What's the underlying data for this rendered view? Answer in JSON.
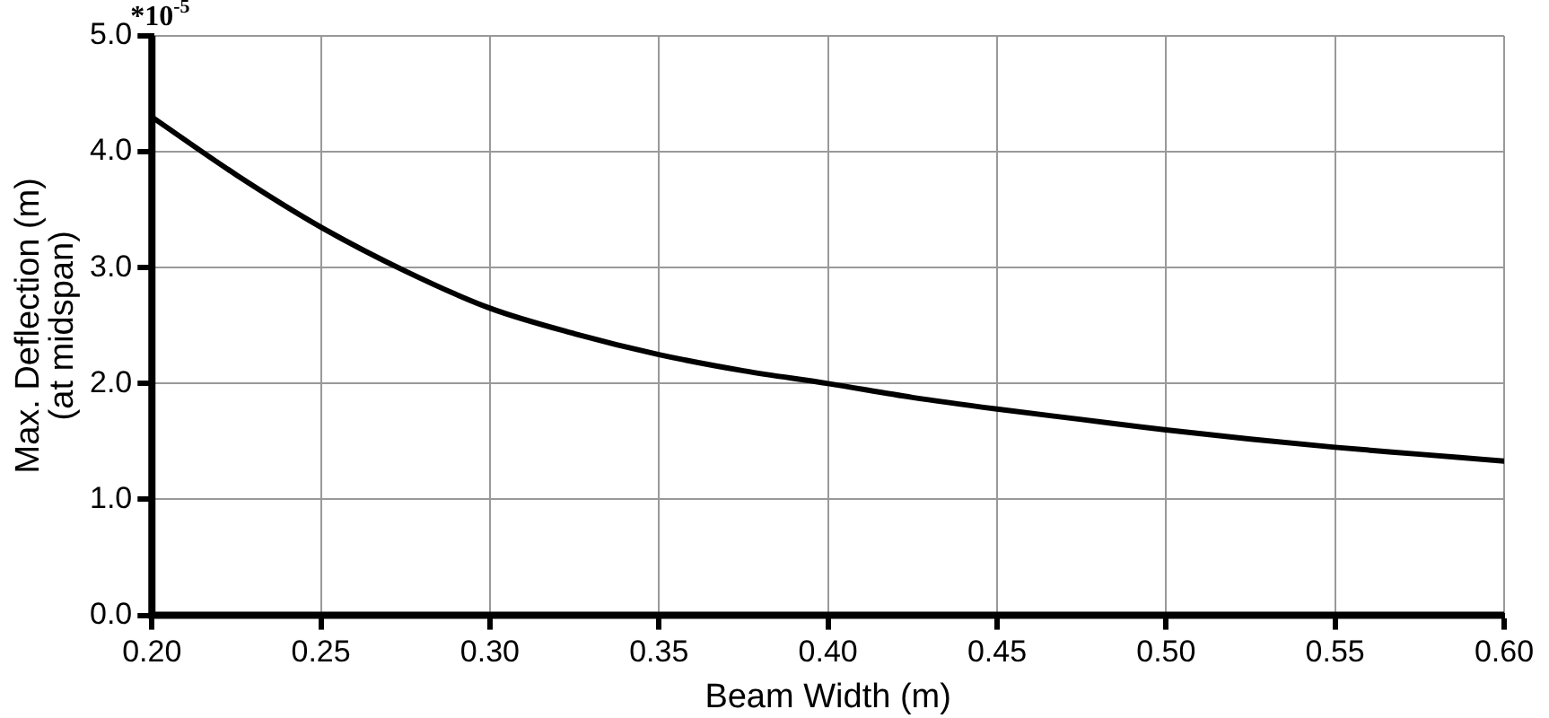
{
  "chart_data": {
    "type": "line",
    "xlabel": "Beam Width (m)",
    "ylabel": "Max. Deflection (m)\n(at midspan)",
    "annotations": [
      "*10$^{-5}$"
    ],
    "x": [
      0.2,
      0.225,
      0.25,
      0.275,
      0.3,
      0.325,
      0.35,
      0.375,
      0.4,
      0.425,
      0.45,
      0.475,
      0.5,
      0.525,
      0.55,
      0.575,
      0.6
    ],
    "series": [
      {
        "color": "#000000",
        "values": [
          4.3,
          3.8,
          3.35,
          2.97,
          2.65,
          2.43,
          2.25,
          2.11,
          2.0,
          1.88,
          1.78,
          1.69,
          1.6,
          1.52,
          1.45,
          1.39,
          1.33
        ]
      }
    ],
    "xlim": [
      0.2,
      0.6
    ],
    "ylim": [
      0,
      5
    ],
    "xticks": [
      {
        "value": 0.2,
        "label": "0.20"
      },
      {
        "value": 0.25,
        "label": "0.25"
      },
      {
        "value": 0.3,
        "label": "0.30"
      },
      {
        "value": 0.35,
        "label": "0.35"
      },
      {
        "value": 0.4,
        "label": "0.40"
      },
      {
        "value": 0.45,
        "label": "0.45"
      },
      {
        "value": 0.5,
        "label": "0.50"
      },
      {
        "value": 0.55,
        "label": "0.55"
      },
      {
        "value": 0.6,
        "label": "0.60"
      }
    ],
    "yticks": [
      {
        "value": 0,
        "label": "0.0"
      },
      {
        "value": 1,
        "label": "1.0"
      },
      {
        "value": 2,
        "label": "2.0"
      },
      {
        "value": 3,
        "label": "3.0"
      },
      {
        "value": 4,
        "label": "4.0"
      },
      {
        "value": 5,
        "label": "5.0"
      }
    ],
    "grid": true,
    "legend": false,
    "marker": "none",
    "line_style": "solid"
  }
}
